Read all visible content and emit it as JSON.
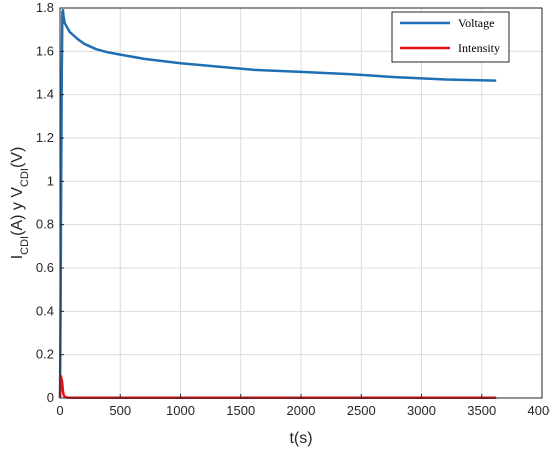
{
  "chart_data": {
    "type": "line",
    "title": "",
    "xlabel": "t(s)",
    "ylabel": {
      "parts": [
        {
          "text": "I",
          "sub": false
        },
        {
          "text": "CDI",
          "sub": true
        },
        {
          "text": "(A)  y  V",
          "sub": false
        },
        {
          "text": "CDI",
          "sub": true
        },
        {
          "text": "(V)",
          "sub": false
        }
      ]
    },
    "xlim": [
      0,
      4000
    ],
    "ylim": [
      0,
      1.8
    ],
    "xticks": [
      0,
      500,
      1000,
      1500,
      2000,
      2500,
      3000,
      3500,
      4000
    ],
    "yticks": [
      0,
      0.2,
      0.4,
      0.6,
      0.8,
      1,
      1.2,
      1.4,
      1.6,
      1.8
    ],
    "xtick_labels": [
      "0",
      "500",
      "1000",
      "1500",
      "2000",
      "2500",
      "3000",
      "3500",
      "4000"
    ],
    "ytick_labels": [
      "0",
      "0.2",
      "0.4",
      "0.6",
      "0.8",
      "1",
      "1.2",
      "1.4",
      "1.6",
      "1.8"
    ],
    "grid": true,
    "legend_position": "top-right",
    "series": [
      {
        "name": "Voltage",
        "color": "#1f6fb5",
        "x": [
          0,
          5,
          10,
          15,
          20,
          25,
          30,
          40,
          60,
          80,
          100,
          150,
          200,
          300,
          400,
          500,
          700,
          1000,
          1300,
          1600,
          2000,
          2400,
          2800,
          3200,
          3620
        ],
        "y": [
          0,
          0.4,
          1.0,
          1.5,
          1.78,
          1.79,
          1.76,
          1.73,
          1.71,
          1.69,
          1.68,
          1.655,
          1.635,
          1.61,
          1.595,
          1.585,
          1.565,
          1.545,
          1.53,
          1.515,
          1.505,
          1.495,
          1.48,
          1.47,
          1.465
        ]
      },
      {
        "name": "Intensity",
        "color": "#e8101a",
        "x": [
          0,
          5,
          8,
          12,
          16,
          20,
          25,
          30,
          40,
          60,
          100,
          500,
          1000,
          2000,
          3000,
          3620
        ],
        "y": [
          0,
          0.095,
          0.1,
          0.09,
          0.08,
          0.06,
          0.03,
          0.015,
          0.005,
          0.002,
          0.001,
          0.001,
          0.001,
          0.001,
          0.001,
          0.001
        ]
      }
    ]
  }
}
